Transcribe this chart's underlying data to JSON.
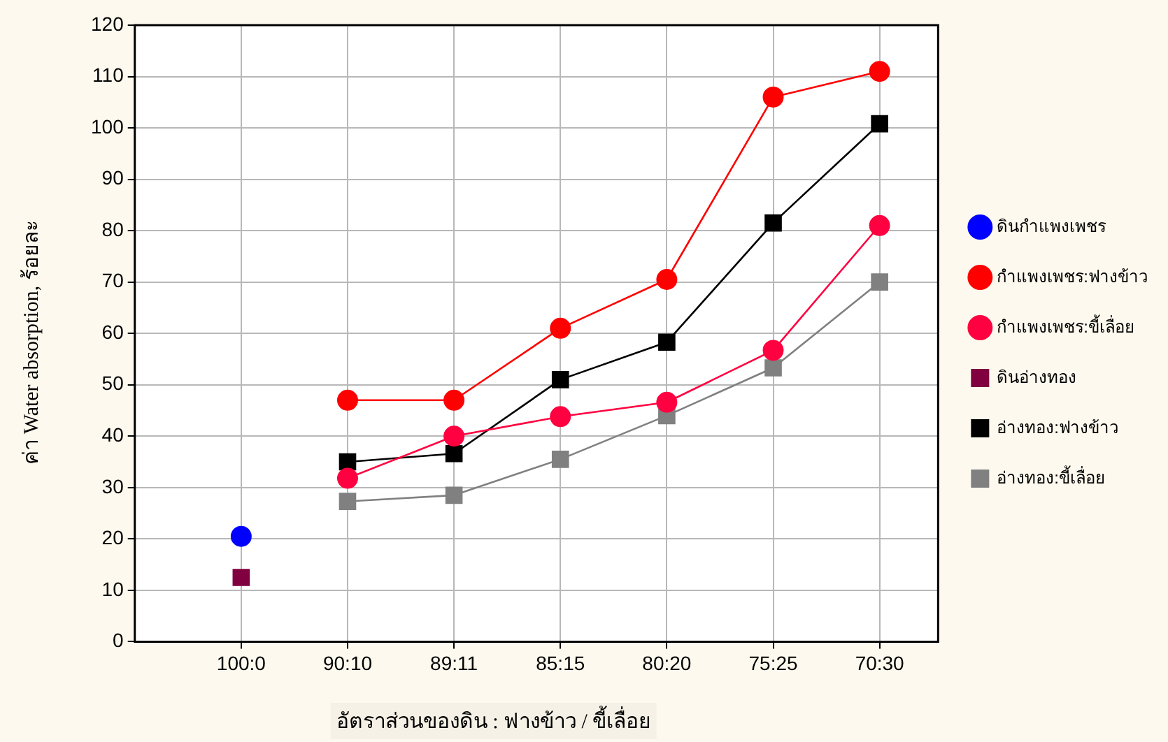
{
  "chart_data": {
    "type": "line",
    "xlabel": "อัตราส่วนของดิน : ฟางข้าว / ขี้เลื่อย",
    "ylabel": "ค่า Water absorption, ร้อยละ",
    "categories": [
      "100:0",
      "90:10",
      "89:11",
      "85:15",
      "80:20",
      "75:25",
      "70:30"
    ],
    "ylim": [
      0,
      120
    ],
    "yticks": [
      0,
      10,
      20,
      30,
      40,
      50,
      60,
      70,
      80,
      90,
      100,
      110,
      120
    ],
    "grid": true,
    "legend": "right",
    "series": [
      {
        "name": "ดินกำแพงเพชร",
        "color": "#0000ff",
        "marker": "circle",
        "values": [
          20.5,
          null,
          null,
          null,
          null,
          null,
          null
        ]
      },
      {
        "name": "กำแพงเพชร:ฟางข้าว",
        "color": "#ff0000",
        "marker": "circle",
        "values": [
          null,
          47,
          47,
          61,
          70.5,
          106,
          111
        ]
      },
      {
        "name": "กำแพงเพชร:ขี้เลื่อย",
        "color": "#ff0040",
        "marker": "circle",
        "values": [
          null,
          31.8,
          40,
          43.8,
          46.6,
          56.7,
          81
        ]
      },
      {
        "name": "ดินอ่างทอง",
        "color": "#800040",
        "marker": "square",
        "values": [
          12.5,
          null,
          null,
          null,
          null,
          null,
          null
        ]
      },
      {
        "name": "อ่างทอง:ฟางข้าว",
        "color": "#000000",
        "marker": "square",
        "values": [
          null,
          35,
          36.6,
          51,
          58.3,
          81.5,
          100.8
        ]
      },
      {
        "name": "อ่างทอง:ขี้เลื่อย",
        "color": "#808080",
        "marker": "square",
        "values": [
          null,
          27.3,
          28.5,
          35.5,
          44,
          53.3,
          70
        ]
      }
    ]
  }
}
